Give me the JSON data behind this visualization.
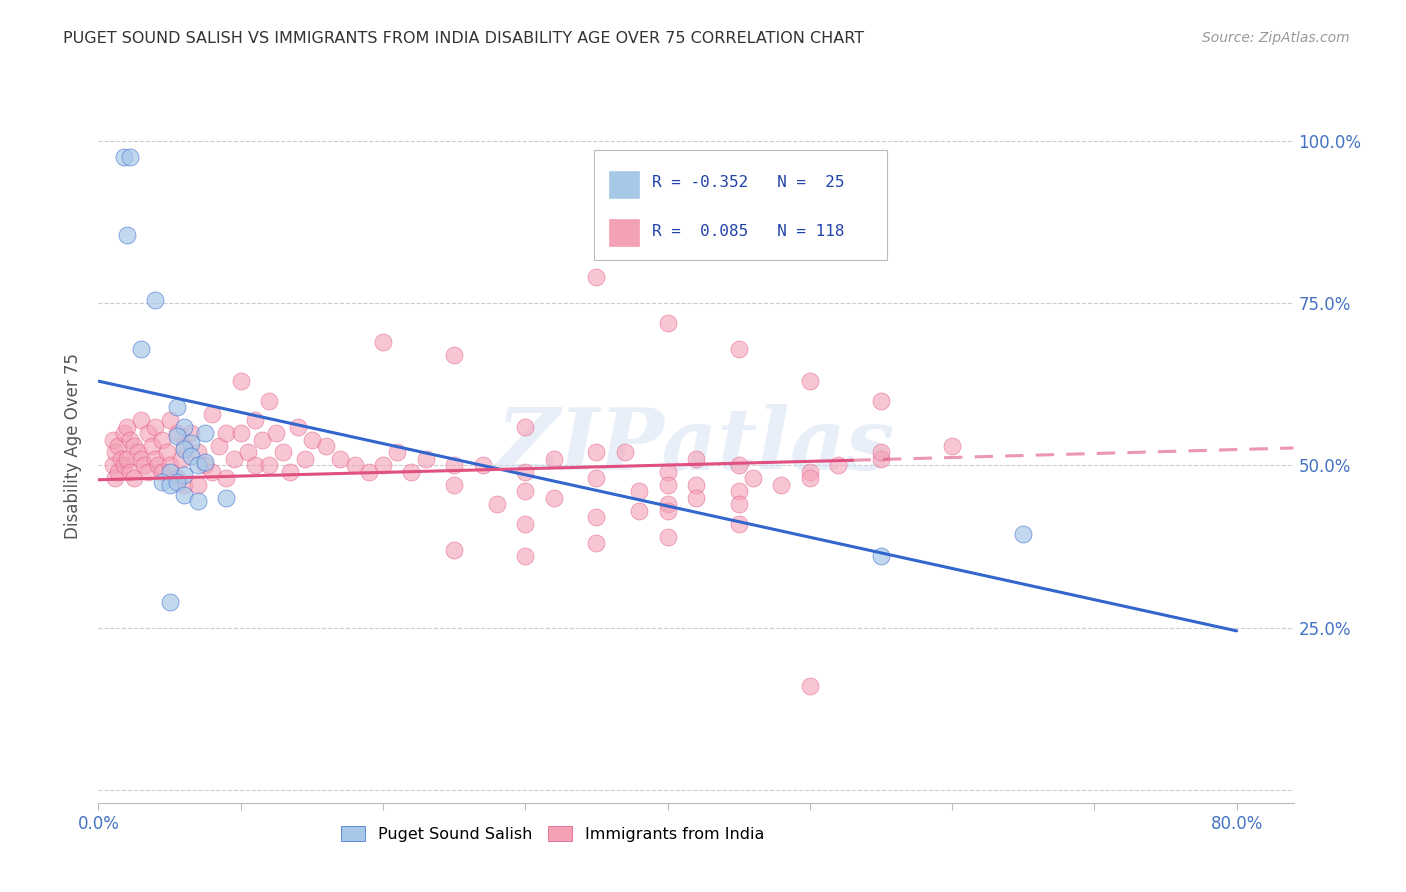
{
  "title": "PUGET SOUND SALISH VS IMMIGRANTS FROM INDIA DISABILITY AGE OVER 75 CORRELATION CHART",
  "source": "Source: ZipAtlas.com",
  "ylabel": "Disability Age Over 75",
  "yticks_labels": [
    "",
    "25.0%",
    "50.0%",
    "75.0%",
    "100.0%"
  ],
  "ytick_vals": [
    0.0,
    0.25,
    0.5,
    0.75,
    1.0
  ],
  "xtick_vals": [
    0.0,
    0.1,
    0.2,
    0.3,
    0.4,
    0.5,
    0.6,
    0.7,
    0.8
  ],
  "xlim": [
    0.0,
    0.84
  ],
  "ylim": [
    -0.02,
    1.08
  ],
  "watermark": "ZIPatlas",
  "color_blue": "#a8c8e8",
  "color_pink": "#f4a0b5",
  "color_blue_line": "#3366cc",
  "color_pink_line": "#e05080",
  "blue_line_x0": 0.0,
  "blue_line_y0": 0.63,
  "blue_line_x1": 0.8,
  "blue_line_y1": 0.245,
  "pink_line_solid_x0": 0.0,
  "pink_line_solid_y0": 0.478,
  "pink_line_solid_x1": 0.53,
  "pink_line_solid_y1": 0.508,
  "pink_line_dash_x0": 0.53,
  "pink_line_dash_y0": 0.508,
  "pink_line_dash_x1": 0.84,
  "pink_line_dash_y1": 0.527,
  "blue_x": [
    0.018,
    0.022,
    0.02,
    0.04,
    0.03,
    0.055,
    0.06,
    0.055,
    0.065,
    0.06,
    0.065,
    0.07,
    0.075,
    0.05,
    0.06,
    0.045,
    0.05,
    0.055,
    0.06,
    0.07,
    0.09,
    0.55,
    0.65,
    0.05,
    0.075
  ],
  "blue_y": [
    0.975,
    0.975,
    0.855,
    0.755,
    0.68,
    0.59,
    0.56,
    0.545,
    0.535,
    0.525,
    0.515,
    0.5,
    0.505,
    0.49,
    0.485,
    0.475,
    0.47,
    0.475,
    0.455,
    0.445,
    0.45,
    0.36,
    0.395,
    0.29,
    0.55
  ],
  "pink_x": [
    0.01,
    0.01,
    0.012,
    0.012,
    0.014,
    0.014,
    0.016,
    0.018,
    0.018,
    0.02,
    0.02,
    0.022,
    0.022,
    0.025,
    0.025,
    0.028,
    0.03,
    0.03,
    0.032,
    0.035,
    0.035,
    0.038,
    0.04,
    0.04,
    0.042,
    0.045,
    0.045,
    0.048,
    0.05,
    0.05,
    0.055,
    0.055,
    0.058,
    0.06,
    0.06,
    0.065,
    0.07,
    0.07,
    0.075,
    0.08,
    0.08,
    0.085,
    0.09,
    0.09,
    0.095,
    0.1,
    0.1,
    0.105,
    0.11,
    0.11,
    0.115,
    0.12,
    0.12,
    0.125,
    0.13,
    0.135,
    0.14,
    0.145,
    0.15,
    0.16,
    0.17,
    0.18,
    0.19,
    0.2,
    0.21,
    0.22,
    0.23,
    0.25,
    0.27,
    0.3,
    0.32,
    0.35,
    0.37,
    0.4,
    0.42,
    0.45,
    0.3,
    0.25,
    0.28,
    0.32,
    0.38,
    0.42,
    0.46,
    0.5,
    0.52,
    0.55,
    0.38,
    0.4,
    0.42,
    0.45,
    0.48,
    0.5,
    0.3,
    0.35,
    0.4,
    0.45,
    0.35,
    0.4,
    0.3,
    0.25,
    0.55,
    0.6,
    0.35,
    0.4,
    0.45,
    0.5,
    0.55,
    0.2,
    0.25,
    0.3,
    0.35,
    0.4,
    0.45,
    0.5
  ],
  "pink_y": [
    0.54,
    0.5,
    0.52,
    0.48,
    0.53,
    0.49,
    0.51,
    0.55,
    0.5,
    0.56,
    0.51,
    0.54,
    0.49,
    0.53,
    0.48,
    0.52,
    0.57,
    0.51,
    0.5,
    0.55,
    0.49,
    0.53,
    0.56,
    0.51,
    0.5,
    0.54,
    0.49,
    0.52,
    0.57,
    0.5,
    0.55,
    0.48,
    0.51,
    0.53,
    0.47,
    0.55,
    0.52,
    0.47,
    0.5,
    0.58,
    0.49,
    0.53,
    0.55,
    0.48,
    0.51,
    0.63,
    0.55,
    0.52,
    0.57,
    0.5,
    0.54,
    0.6,
    0.5,
    0.55,
    0.52,
    0.49,
    0.56,
    0.51,
    0.54,
    0.53,
    0.51,
    0.5,
    0.49,
    0.5,
    0.52,
    0.49,
    0.51,
    0.5,
    0.5,
    0.49,
    0.51,
    0.48,
    0.52,
    0.49,
    0.51,
    0.5,
    0.46,
    0.47,
    0.44,
    0.45,
    0.46,
    0.47,
    0.48,
    0.49,
    0.5,
    0.51,
    0.43,
    0.44,
    0.45,
    0.46,
    0.47,
    0.48,
    0.41,
    0.42,
    0.43,
    0.44,
    0.38,
    0.39,
    0.36,
    0.37,
    0.52,
    0.53,
    0.79,
    0.72,
    0.68,
    0.63,
    0.6,
    0.69,
    0.67,
    0.56,
    0.52,
    0.47,
    0.41,
    0.16
  ]
}
